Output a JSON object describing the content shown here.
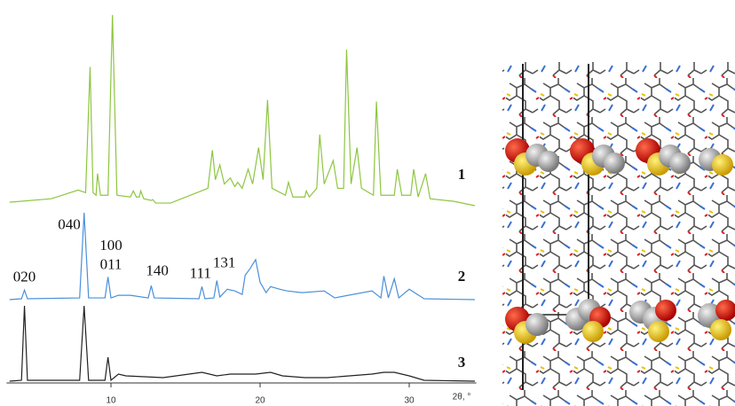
{
  "chart_data": [
    {
      "type": "line",
      "label": "1",
      "color": "#8dc63f",
      "xlim": [
        3,
        34.5
      ],
      "ylim": [
        0,
        225
      ],
      "x": [
        3.2,
        6,
        7.8,
        8.3,
        8.6,
        8.8,
        9.0,
        9.1,
        9.3,
        9.8,
        10.1,
        10.4,
        11.3,
        11.5,
        11.7,
        11.9,
        12.0,
        12.2,
        12.7,
        12.8,
        13,
        14,
        16.5,
        16.8,
        17.0,
        17.3,
        17.6,
        18.0,
        18.3,
        18.5,
        18.8,
        19.2,
        19.5,
        19.9,
        20.2,
        20.5,
        20.8,
        21.7,
        21.9,
        22.2,
        23.0,
        23.1,
        23.3,
        23.8,
        24.0,
        24.3,
        24.9,
        25.2,
        25.6,
        25.8,
        26.1,
        26.5,
        26.8,
        27.6,
        27.8,
        28.1,
        29.0,
        29.2,
        29.5,
        30.1,
        30.3,
        30.6,
        31.1,
        31.4,
        33,
        34.4
      ],
      "values": [
        4,
        8,
        18,
        15,
        160,
        15,
        12,
        37,
        12,
        12,
        220,
        12,
        10,
        17,
        10,
        10,
        17,
        8,
        6,
        7,
        3,
        3,
        20,
        64,
        30,
        47,
        25,
        32,
        22,
        27,
        20,
        42,
        25,
        67,
        30,
        122,
        20,
        12,
        27,
        10,
        10,
        17,
        10,
        20,
        82,
        25,
        52,
        20,
        20,
        180,
        25,
        67,
        20,
        12,
        120,
        12,
        12,
        42,
        12,
        12,
        42,
        10,
        37,
        8,
        5,
        0
      ]
    },
    {
      "type": "line",
      "label": "2",
      "color": "#4a90d9",
      "xlim": [
        3,
        34.5
      ],
      "ylim": [
        0,
        105
      ],
      "x": [
        3.2,
        4.0,
        4.2,
        4.4,
        7.9,
        8.2,
        8.5,
        9.6,
        9.8,
        10.0,
        10.5,
        11.3,
        12.5,
        12.7,
        12.9,
        15.9,
        16.1,
        16.3,
        16.9,
        17.1,
        17.3,
        17.8,
        18.3,
        18.8,
        19.0,
        19.3,
        19.7,
        20.0,
        20.4,
        20.7,
        21.3,
        21.8,
        22.8,
        24.3,
        25,
        27.5,
        28.1,
        28.3,
        28.6,
        29.0,
        29.3,
        30.0,
        31,
        34.4
      ],
      "values": [
        0,
        1,
        11,
        1,
        2,
        100,
        2,
        2,
        26,
        2,
        5,
        5,
        2,
        16,
        2,
        1,
        15,
        1,
        2,
        22,
        3,
        12,
        10,
        6,
        28,
        35,
        46,
        20,
        8,
        15,
        12,
        10,
        8,
        10,
        2,
        10,
        2,
        27,
        2,
        24,
        2,
        12,
        1,
        0
      ],
      "annotations": [
        {
          "text": "020",
          "x": 4.2,
          "y": 25
        },
        {
          "text": "040",
          "x": 7.2,
          "y": 85
        },
        {
          "text": "100",
          "x": 10.0,
          "y": 61
        },
        {
          "text": "011",
          "x": 10.0,
          "y": 39
        },
        {
          "text": "140",
          "x": 13.1,
          "y": 32
        },
        {
          "text": "111",
          "x": 16.0,
          "y": 29
        },
        {
          "text": "131",
          "x": 17.6,
          "y": 41
        }
      ]
    },
    {
      "type": "line",
      "label": "3",
      "color": "#222222",
      "xlim": [
        3,
        34.5
      ],
      "ylim": [
        0,
        90
      ],
      "xticks": [
        10,
        20,
        30
      ],
      "xlabel": "2θ, °",
      "x": [
        3.2,
        4.0,
        4.2,
        4.4,
        7.9,
        8.2,
        8.5,
        9.6,
        9.8,
        10.0,
        10.5,
        11.0,
        13.5,
        16.1,
        17.1,
        18.0,
        19.0,
        19.7,
        20.7,
        21.5,
        23.0,
        24.5,
        27.5,
        28.3,
        29.0,
        30.0,
        31,
        34.4
      ],
      "values": [
        0,
        1,
        85,
        1,
        1,
        85,
        1,
        1,
        27,
        1,
        8,
        6,
        4,
        10,
        6,
        8,
        8,
        8,
        10,
        6,
        4,
        4,
        8,
        10,
        10,
        6,
        1,
        0
      ]
    }
  ]
}
